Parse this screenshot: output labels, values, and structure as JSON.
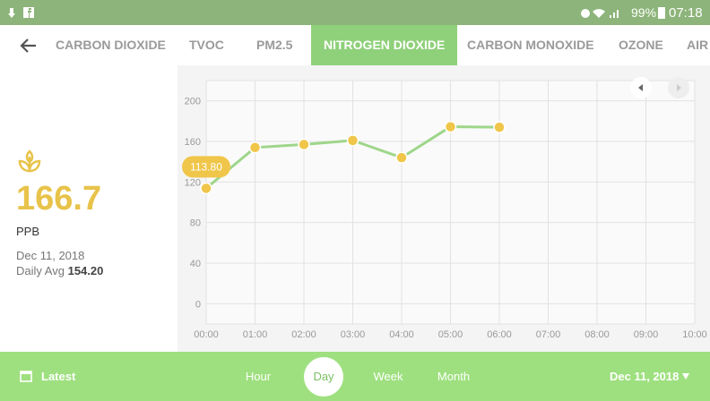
{
  "status_bar": {
    "battery": "99%",
    "time": "07:18"
  },
  "tabs": {
    "items": [
      "CARBON DIOXIDE",
      "TVOC",
      "PM2.5",
      "NITROGEN DIOXIDE",
      "CARBON MONOXIDE",
      "OZONE",
      "AIR"
    ],
    "active": 3
  },
  "summary": {
    "value": "166.7",
    "unit": "PPB",
    "date": "Dec 11, 2018",
    "avg_label": "Daily Avg",
    "avg_value": "154.20"
  },
  "chart_data": {
    "type": "line",
    "categories": [
      "00:00",
      "01:00",
      "02:00",
      "03:00",
      "04:00",
      "05:00",
      "06:00",
      "07:00",
      "08:00",
      "09:00",
      "10:00"
    ],
    "values": [
      113.8,
      154,
      157,
      161,
      144,
      174.5,
      174,
      null,
      null,
      null,
      null
    ],
    "value_labels": [
      "113.80",
      null,
      null,
      null,
      null,
      null,
      null,
      null,
      null,
      null,
      null
    ],
    "color": "#9ed68a",
    "point_color": "#f0c64a",
    "ylim": [
      -20,
      220
    ],
    "yticks": [
      0,
      40,
      80,
      120,
      160,
      200
    ],
    "grid": true
  },
  "bottom_bar": {
    "latest": "Latest",
    "periods": [
      "Hour",
      "Day",
      "Week",
      "Month"
    ],
    "active": 1,
    "date": "Dec 11, 2018"
  }
}
